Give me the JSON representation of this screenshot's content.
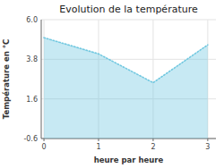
{
  "chart_data": {
    "type": "area",
    "title": "Evolution de la température",
    "x_label": "heure par heure",
    "y_label": "Température en °C",
    "x": [
      0,
      1,
      2,
      3
    ],
    "values": [
      5.0,
      4.1,
      2.5,
      4.6
    ],
    "color": "#72c8e0",
    "line_style": "dotted",
    "xlim": [
      -0.05,
      3.15
    ],
    "ylim": [
      -0.6,
      6.0
    ],
    "xticks": [
      0,
      1,
      2,
      3
    ],
    "yticks": [
      -0.6,
      1.6,
      3.8,
      {
        "value": 6.0,
        "label": "6.0"
      }
    ],
    "grid": true
  }
}
